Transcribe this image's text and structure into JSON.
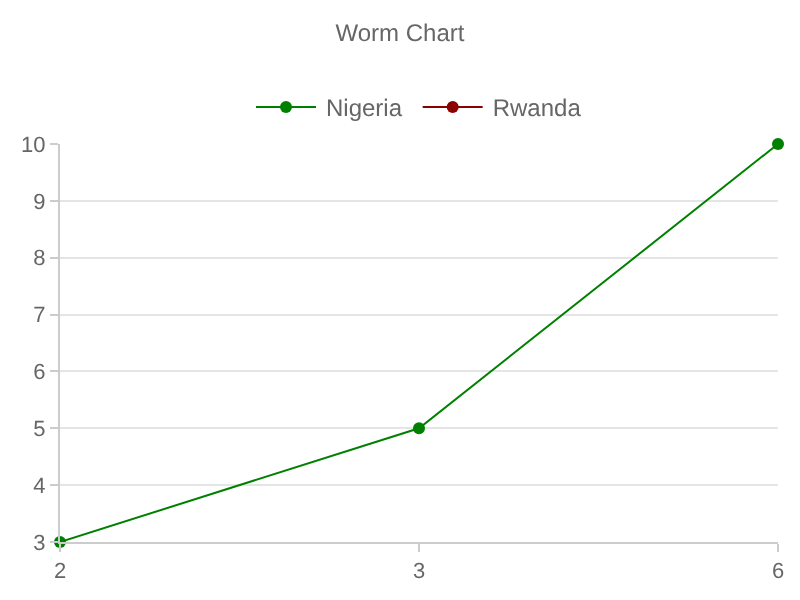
{
  "chart_data": {
    "type": "line",
    "title": "Worm Chart",
    "categories": [
      "2",
      "3",
      "6"
    ],
    "series": [
      {
        "name": "Nigeria",
        "color": "#008000",
        "values": [
          3,
          5,
          10
        ]
      },
      {
        "name": "Rwanda",
        "color": "#8b0000",
        "values": [
          null,
          null,
          null
        ]
      }
    ],
    "ylim": [
      3,
      10
    ],
    "yticks": [
      3,
      4,
      5,
      6,
      7,
      8,
      9,
      10
    ],
    "grid": "y",
    "legend": "top",
    "marker": "circle",
    "line_style": "solid"
  }
}
